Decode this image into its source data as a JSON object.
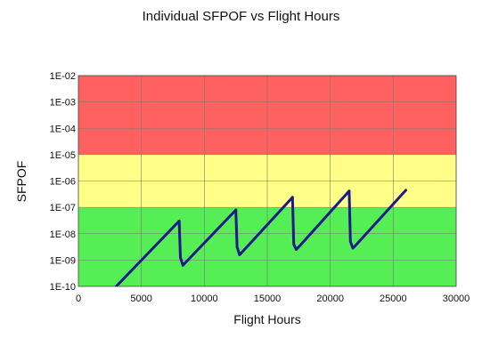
{
  "chart_data": {
    "type": "line",
    "title": "Individual SFPOF vs Flight Hours",
    "xlabel": "Flight Hours",
    "ylabel": "SFPOF",
    "xlim": [
      0,
      30000
    ],
    "ylim": [
      -10,
      -2
    ],
    "yscale": "log",
    "x_ticks": [
      "0",
      "5000",
      "10000",
      "15000",
      "20000",
      "25000",
      "30000"
    ],
    "y_ticks": [
      "1E-10",
      "1E-09",
      "1E-08",
      "1E-07",
      "1E-06",
      "1E-05",
      "1E-04",
      "1E-03",
      "1E-02"
    ],
    "grid": true,
    "legend": "none",
    "bands": [
      {
        "from_exp": -5,
        "to_exp": -2,
        "color": "#ff6060"
      },
      {
        "from_exp": -7,
        "to_exp": -5,
        "color": "#ffff88"
      },
      {
        "from_exp": -10,
        "to_exp": -7,
        "color": "#55ee55"
      }
    ],
    "series": [
      {
        "color": "#1a1a8a",
        "segments": [
          [
            [
              3000,
              -10.0
            ],
            [
              8000,
              -7.52
            ]
          ],
          [
            [
              8000,
              -7.52
            ],
            [
              8100,
              -8.9
            ],
            [
              8300,
              -9.2
            ],
            [
              8600,
              -9.05
            ],
            [
              12500,
              -7.1
            ]
          ],
          [
            [
              12500,
              -7.1
            ],
            [
              12600,
              -8.5
            ],
            [
              12800,
              -8.8
            ],
            [
              13100,
              -8.65
            ],
            [
              17000,
              -6.62
            ]
          ],
          [
            [
              17000,
              -6.62
            ],
            [
              17100,
              -8.4
            ],
            [
              17300,
              -8.6
            ],
            [
              17600,
              -8.45
            ],
            [
              21500,
              -6.38
            ]
          ],
          [
            [
              21500,
              -6.38
            ],
            [
              21600,
              -8.3
            ],
            [
              21800,
              -8.55
            ],
            [
              22100,
              -8.4
            ],
            [
              26000,
              -6.35
            ]
          ]
        ]
      }
    ]
  }
}
